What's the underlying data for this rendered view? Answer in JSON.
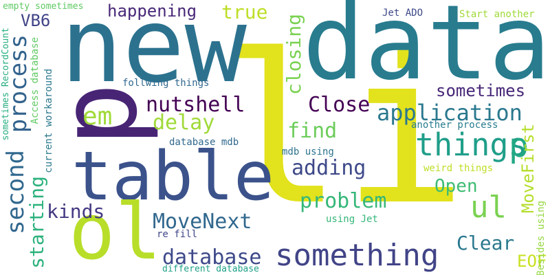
{
  "words": [
    {
      "text": "li",
      "color": "#e2e21d"
    },
    {
      "text": "data",
      "color": "#287c8e"
    },
    {
      "text": "new",
      "color": "#2c728e"
    },
    {
      "text": "p",
      "color": "#482475"
    },
    {
      "text": "table",
      "color": "#3b528b"
    },
    {
      "text": "ol",
      "color": "#b8de29"
    },
    {
      "text": "something",
      "color": "#414487"
    },
    {
      "text": "things",
      "color": "#1f9e89"
    },
    {
      "text": "p",
      "color": "#22a884"
    },
    {
      "text": "ul",
      "color": "#7ad151"
    },
    {
      "text": "process",
      "color": "#33638d"
    },
    {
      "text": "second",
      "color": "#31688e"
    },
    {
      "text": "application",
      "color": "#2a788e"
    },
    {
      "text": "database",
      "color": "#3e4989"
    },
    {
      "text": "MoveNext",
      "color": "#31688e"
    },
    {
      "text": "nutshell",
      "color": "#440154"
    },
    {
      "text": "Close",
      "color": "#440154"
    },
    {
      "text": "sometimes",
      "color": "#482878"
    },
    {
      "text": "happening",
      "color": "#482878"
    },
    {
      "text": "em",
      "color": "#a0da39"
    },
    {
      "text": "delay",
      "color": "#a0da39"
    },
    {
      "text": "find",
      "color": "#6ccd5a"
    },
    {
      "text": "adding",
      "color": "#3e4989"
    },
    {
      "text": "problem",
      "color": "#35b779"
    },
    {
      "text": "Open",
      "color": "#3fbc73"
    },
    {
      "text": "Clear",
      "color": "#2a788e"
    },
    {
      "text": "kinds",
      "color": "#443983"
    },
    {
      "text": "starting",
      "color": "#2db27d"
    },
    {
      "text": "closing",
      "color": "#7ad151"
    },
    {
      "text": "true",
      "color": "#bddf26"
    },
    {
      "text": "VB6",
      "color": "#414487"
    },
    {
      "text": "MoveFirst",
      "color": "#b5de2b"
    },
    {
      "text": "EOF",
      "color": "#c8e020"
    },
    {
      "text": "current workaround",
      "color": "#2a788e"
    },
    {
      "text": "Access database",
      "color": "#5ec962"
    },
    {
      "text": "sometimes RecordCount",
      "color": "#26ad81"
    },
    {
      "text": "empty sometimes",
      "color": "#5ec962"
    },
    {
      "text": "Jet ADO",
      "color": "#3e4989"
    },
    {
      "text": "Start another",
      "color": "#a0da39"
    },
    {
      "text": "follwing things",
      "color": "#31688e"
    },
    {
      "text": "database mdb",
      "color": "#31688e"
    },
    {
      "text": "mdb using",
      "color": "#2c728e"
    },
    {
      "text": "another process",
      "color": "#287c8e"
    },
    {
      "text": "weird things",
      "color": "#bddf26"
    },
    {
      "text": "using Jet",
      "color": "#35b779"
    },
    {
      "text": "re fill",
      "color": "#404688"
    },
    {
      "text": "different database",
      "color": "#1fa187"
    },
    {
      "text": "Besides using",
      "color": "#95d840"
    }
  ]
}
